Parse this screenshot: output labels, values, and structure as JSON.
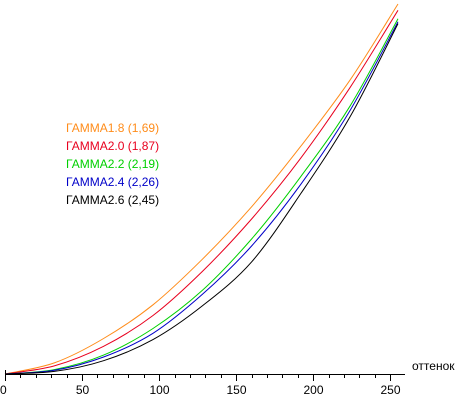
{
  "chart_data": {
    "type": "line",
    "title": "",
    "xlabel": "оттенок",
    "ylabel": "",
    "xlim": [
      0,
      255
    ],
    "ylim": [
      0,
      1
    ],
    "grid": false,
    "legend_placement": "upper-left",
    "x_ticks": [
      0,
      50,
      100,
      150,
      200,
      250
    ],
    "x_tick_labels": [
      "0",
      "50",
      "100",
      "150",
      "200",
      "250"
    ],
    "series": [
      {
        "name": "ГАММА1.8 (1,69)",
        "color": "#ff8c1a",
        "x": [
          0,
          32,
          64,
          96,
          128,
          160,
          192,
          224,
          255
        ],
        "y": [
          0,
          0.03,
          0.096,
          0.187,
          0.31,
          0.452,
          0.616,
          0.795,
          1.0
        ]
      },
      {
        "name": "ГАММА2.0 (1,87)",
        "color": "#e8001e",
        "x": [
          0,
          32,
          64,
          96,
          128,
          160,
          192,
          224,
          255
        ],
        "y": [
          0,
          0.022,
          0.075,
          0.158,
          0.277,
          0.419,
          0.584,
          0.775,
          0.983
        ]
      },
      {
        "name": "ГАММА2.2 (2,19)",
        "color": "#00d000",
        "x": [
          0,
          32,
          64,
          96,
          128,
          160,
          192,
          224,
          255
        ],
        "y": [
          0,
          0.012,
          0.051,
          0.123,
          0.226,
          0.365,
          0.534,
          0.725,
          0.96
        ]
      },
      {
        "name": "ГАММА2.4 (2,26)",
        "color": "#0000c8",
        "x": [
          0,
          32,
          64,
          96,
          128,
          160,
          192,
          224,
          255
        ],
        "y": [
          0,
          0.01,
          0.046,
          0.11,
          0.215,
          0.346,
          0.513,
          0.713,
          0.952
        ]
      },
      {
        "name": "ГАММА2.6 (2,45)",
        "color": "#000000",
        "x": [
          0,
          32,
          64,
          96,
          128,
          160,
          192,
          224,
          255
        ],
        "y": [
          0,
          0.007,
          0.036,
          0.093,
          0.184,
          0.303,
          0.488,
          0.696,
          0.947
        ]
      }
    ]
  }
}
